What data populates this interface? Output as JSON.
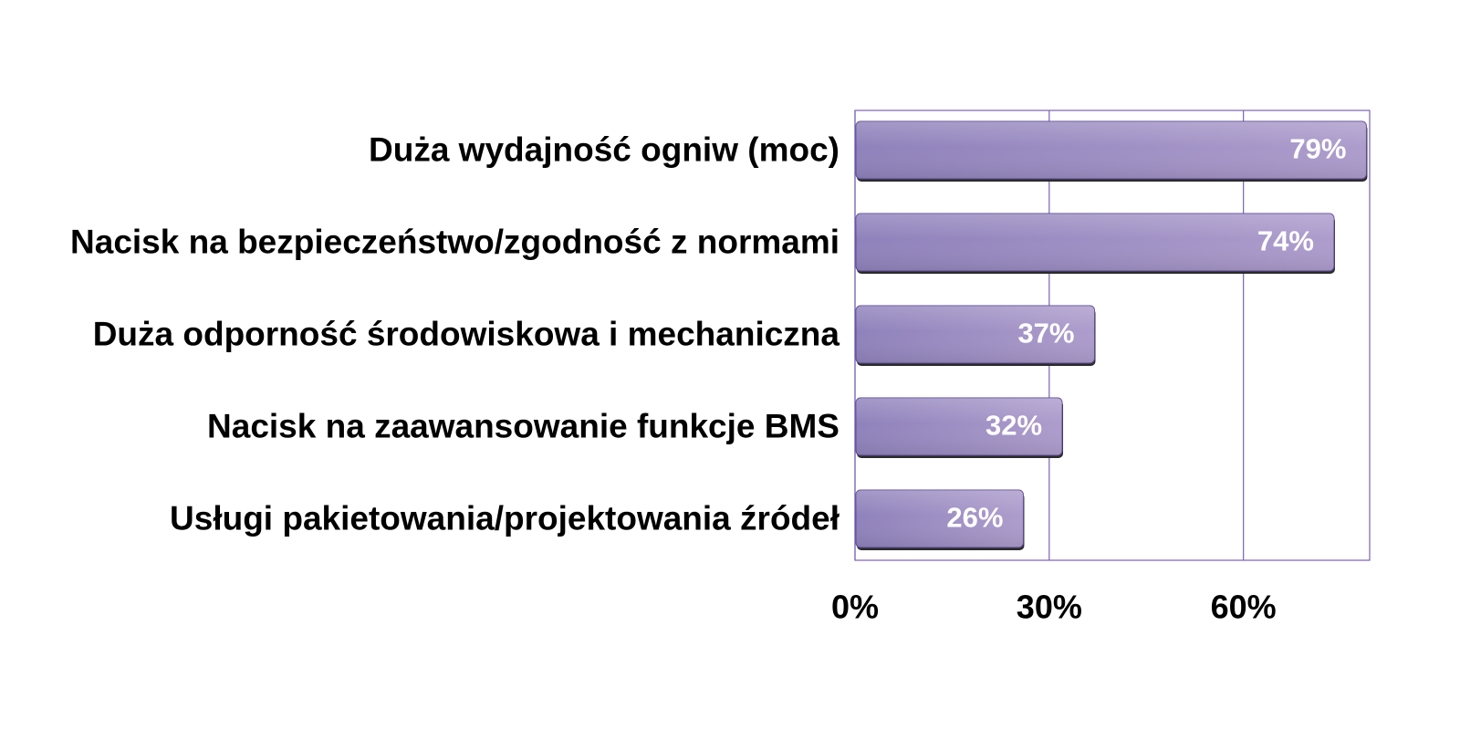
{
  "chart_data": {
    "type": "bar",
    "orientation": "horizontal",
    "categories": [
      "Duża wydajność ogniw (moc)",
      "Nacisk na bezpieczeństwo/zgodność z normami",
      "Duża odporność środowiskowa i mechaniczna",
      "Nacisk na zaawansowanie funkcje BMS",
      "Usługi pakietowania/projektowania źródeł"
    ],
    "values": [
      79,
      74,
      37,
      32,
      26
    ],
    "value_labels": [
      "79%",
      "74%",
      "37%",
      "32%",
      "26%"
    ],
    "xlim": [
      0,
      79.5
    ],
    "xticks": [
      0,
      30,
      60
    ],
    "xtick_labels": [
      "0%",
      "30%",
      "60%"
    ],
    "grid": true,
    "legend": false,
    "colors": {
      "bar_left": "#8f82bb",
      "bar_right": "#ad9ccc",
      "bar_edge": "#5b4b96",
      "bar_shadow": "#2b2b2b",
      "gridline": "#7b62b5",
      "value_text": "#ffffff",
      "label_text": "#000000"
    }
  }
}
